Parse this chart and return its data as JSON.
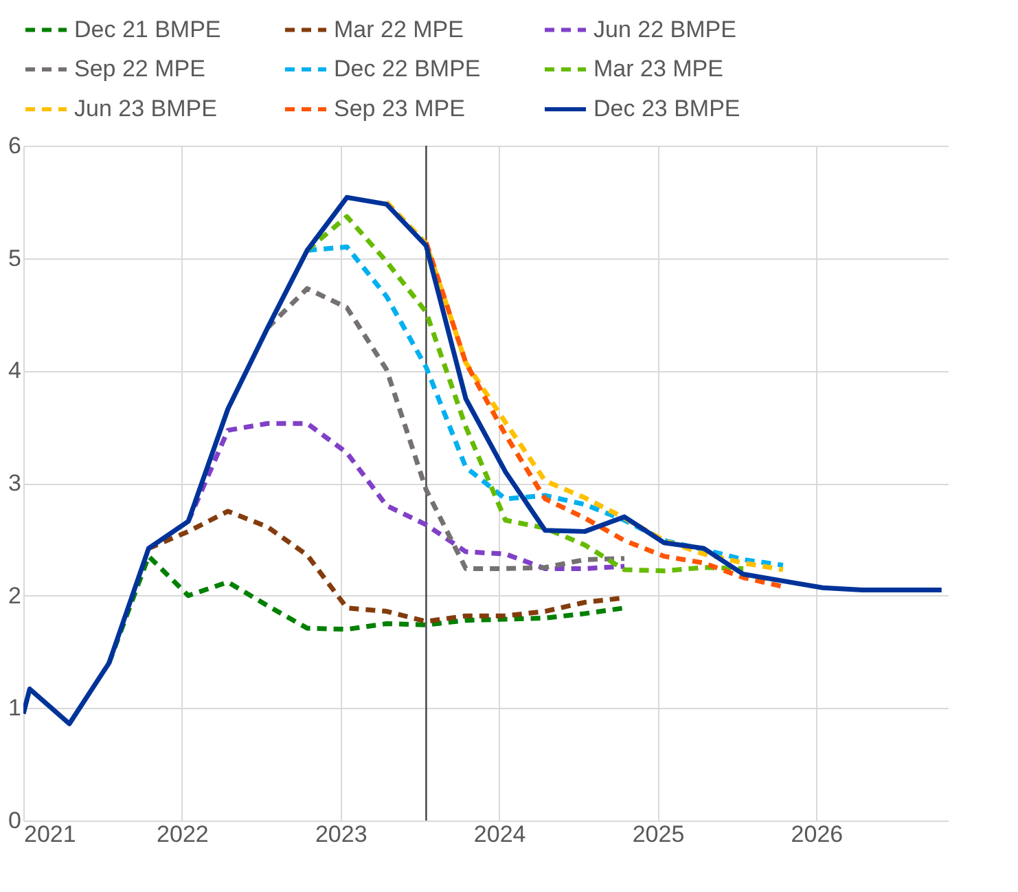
{
  "chart_data": {
    "type": "line",
    "x": [
      2021.0,
      2021.04,
      2021.29,
      2021.54,
      2021.79,
      2022.04,
      2022.29,
      2022.54,
      2022.79,
      2023.04,
      2023.29,
      2023.54,
      2023.79,
      2024.04,
      2024.29,
      2024.54,
      2024.79,
      2025.04,
      2025.29,
      2025.54,
      2025.79,
      2026.04,
      2026.29,
      2026.54,
      2026.79
    ],
    "series": [
      {
        "name": "Dec 21 BMPE",
        "color": "#008000",
        "line_style": "dashed",
        "values": [
          null,
          null,
          null,
          1.4,
          2.35,
          2.0,
          2.12,
          1.91,
          1.71,
          1.7,
          1.75,
          1.74,
          1.78,
          1.79,
          1.8,
          1.84,
          1.89,
          null,
          null,
          null,
          null,
          null,
          null,
          null,
          null
        ]
      },
      {
        "name": "Mar 22 MPE",
        "color": "#843c0c",
        "line_style": "dashed",
        "values": [
          null,
          null,
          null,
          null,
          2.42,
          2.57,
          2.75,
          2.61,
          2.36,
          1.89,
          1.86,
          1.77,
          1.82,
          1.82,
          1.86,
          1.94,
          1.98,
          null,
          null,
          null,
          null,
          null,
          null,
          null,
          null
        ]
      },
      {
        "name": "Jun 22 BMPE",
        "color": "#8040c8",
        "line_style": "dashed",
        "values": [
          null,
          null,
          null,
          null,
          null,
          2.66,
          3.47,
          3.53,
          3.53,
          3.27,
          2.8,
          2.63,
          2.39,
          2.37,
          2.24,
          2.24,
          2.26,
          null,
          null,
          null,
          null,
          null,
          null,
          null,
          null
        ]
      },
      {
        "name": "Sep 22 MPE",
        "color": "#767171",
        "line_style": "dashed",
        "values": [
          null,
          null,
          null,
          null,
          null,
          null,
          null,
          4.38,
          4.73,
          4.56,
          4.01,
          2.94,
          2.24,
          2.24,
          2.25,
          2.32,
          2.33,
          null,
          null,
          null,
          null,
          null,
          null,
          null,
          null
        ]
      },
      {
        "name": "Dec 22 BMPE",
        "color": "#00b0f0",
        "line_style": "dashed",
        "values": [
          null,
          null,
          null,
          null,
          null,
          null,
          null,
          null,
          5.07,
          5.1,
          4.66,
          4.03,
          3.14,
          2.86,
          2.89,
          2.81,
          2.67,
          2.49,
          2.41,
          2.32,
          2.27,
          null,
          null,
          null,
          null
        ]
      },
      {
        "name": "Mar 23 MPE",
        "color": "#66bb00",
        "line_style": "dashed",
        "values": [
          null,
          null,
          null,
          null,
          null,
          null,
          null,
          null,
          5.07,
          5.37,
          4.97,
          4.52,
          3.5,
          2.67,
          2.6,
          2.45,
          2.23,
          2.22,
          2.25,
          2.24,
          null,
          null,
          null,
          null,
          null
        ]
      },
      {
        "name": "Jun 23 BMPE",
        "color": "#ffc000",
        "line_style": "dashed",
        "values": [
          null,
          null,
          null,
          null,
          null,
          null,
          null,
          null,
          null,
          null,
          5.5,
          5.13,
          4.07,
          3.54,
          3.02,
          2.87,
          2.69,
          2.49,
          2.37,
          2.29,
          2.23,
          null,
          null,
          null,
          null
        ]
      },
      {
        "name": "Sep 23 MPE",
        "color": "#ff5500",
        "line_style": "dashed",
        "values": [
          null,
          null,
          null,
          null,
          null,
          null,
          null,
          null,
          null,
          null,
          null,
          5.14,
          4.07,
          3.43,
          2.86,
          2.69,
          2.49,
          2.35,
          2.29,
          2.16,
          2.08,
          null,
          null,
          null,
          null
        ]
      },
      {
        "name": "Dec 23 BMPE",
        "color": "#003399",
        "line_style": "solid",
        "values": [
          0.95,
          1.17,
          0.86,
          1.4,
          2.42,
          2.66,
          3.66,
          4.38,
          5.07,
          5.54,
          5.48,
          5.11,
          3.75,
          3.1,
          2.58,
          2.57,
          2.7,
          2.47,
          2.42,
          2.19,
          2.13,
          2.07,
          2.05,
          2.05,
          2.05
        ]
      }
    ],
    "xlim": [
      2021,
      2026.83
    ],
    "xticks": [
      2021,
      2022,
      2023,
      2024,
      2025,
      2026
    ],
    "ylim": [
      0,
      6
    ],
    "yticks": [
      0,
      1,
      2,
      3,
      4,
      5,
      6
    ],
    "ref_lines": [
      {
        "axis": "x",
        "value": 2023.54,
        "color": "#404040"
      }
    ],
    "grid": true,
    "legend": "top"
  }
}
